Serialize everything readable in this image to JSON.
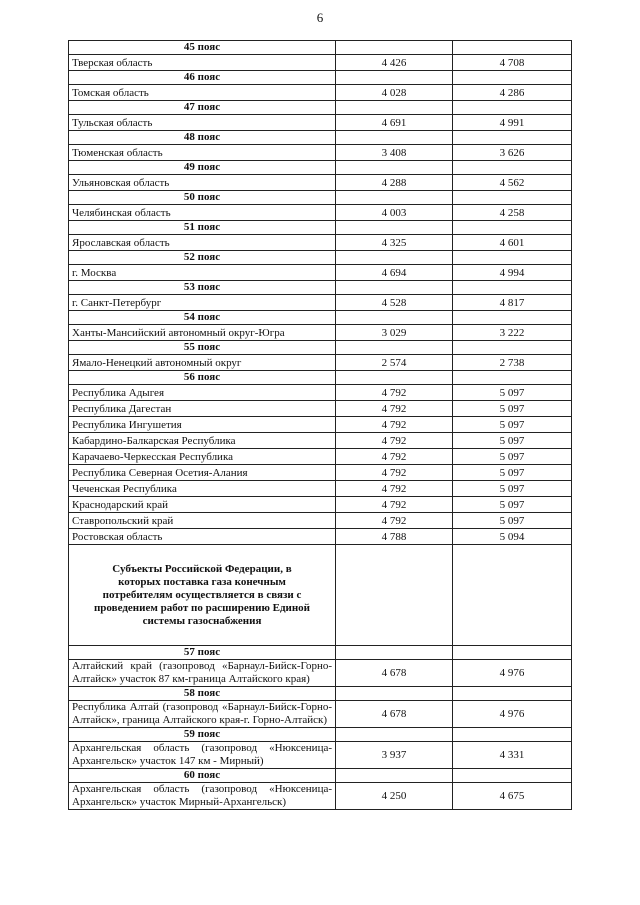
{
  "page_number": "6",
  "table": {
    "rows": [
      {
        "zone": "45 пояс"
      },
      {
        "region": "Тверская область",
        "values": [
          "4 426",
          "4 708"
        ]
      },
      {
        "zone": "46 пояс"
      },
      {
        "region": "Томская область",
        "values": [
          "4 028",
          "4 286"
        ]
      },
      {
        "zone": "47 пояс"
      },
      {
        "region": "Тульская область",
        "values": [
          "4 691",
          "4 991"
        ]
      },
      {
        "zone": "48 пояс"
      },
      {
        "region": "Тюменская область",
        "values": [
          "3 408",
          "3 626"
        ]
      },
      {
        "zone": "49 пояс"
      },
      {
        "region": "Ульяновская область",
        "values": [
          "4 288",
          "4 562"
        ]
      },
      {
        "zone": "50 пояс"
      },
      {
        "region": "Челябинская область",
        "values": [
          "4 003",
          "4 258"
        ]
      },
      {
        "zone": "51 пояс"
      },
      {
        "region": "Ярославская область",
        "values": [
          "4 325",
          "4 601"
        ]
      },
      {
        "zone": "52 пояс"
      },
      {
        "region": "г. Москва",
        "values": [
          "4 694",
          "4 994"
        ]
      },
      {
        "zone": "53 пояс"
      },
      {
        "region": "г. Санкт-Петербург",
        "values": [
          "4 528",
          "4 817"
        ]
      },
      {
        "zone": "54 пояс"
      },
      {
        "region": "Ханты-Мансийский автономный округ-Югра",
        "values": [
          "3 029",
          "3 222"
        ]
      },
      {
        "zone": "55 пояс"
      },
      {
        "region": "Ямало-Ненецкий автономный округ",
        "values": [
          "2 574",
          "2 738"
        ]
      },
      {
        "zone": "56 пояс"
      },
      {
        "region": "Республика Адыгея",
        "values": [
          "4 792",
          "5 097"
        ]
      },
      {
        "region": "Республика Дагестан",
        "values": [
          "4 792",
          "5 097"
        ]
      },
      {
        "region": "Республика Ингушетия",
        "values": [
          "4 792",
          "5 097"
        ]
      },
      {
        "region": "Кабардино-Балкарская Республика",
        "values": [
          "4 792",
          "5 097"
        ]
      },
      {
        "region": "Карачаево-Черкесская Республика",
        "values": [
          "4 792",
          "5 097"
        ]
      },
      {
        "region": "Республика Северная Осетия-Алания",
        "values": [
          "4 792",
          "5 097"
        ]
      },
      {
        "region": "Чеченская Республика",
        "values": [
          "4 792",
          "5 097"
        ]
      },
      {
        "region": "Краснодарский край",
        "values": [
          "4 792",
          "5 097"
        ]
      },
      {
        "region": "Ставропольский край",
        "values": [
          "4 792",
          "5 097"
        ]
      },
      {
        "region": "Ростовская область",
        "values": [
          "4 788",
          "5 094"
        ]
      },
      {
        "heading": "Субъекты Российской Федерации, в которых поставка газа конечным потребителям осуществляется в связи с проведением работ по расширению Единой системы газоснабжения"
      },
      {
        "zone": "57 пояс"
      },
      {
        "region": "Алтайский край (газопровод «Барнаул-Бийск-Горно-Алтайск» участок 87 км-граница Алтайского края)",
        "values": [
          "4 678",
          "4 976"
        ]
      },
      {
        "zone": "58 пояс"
      },
      {
        "region": "Республика Алтай (газопровод «Барнаул-Бийск-Горно-Алтайск», граница Алтайского края-г. Горно-Алтайск)",
        "values": [
          "4 678",
          "4 976"
        ]
      },
      {
        "zone": "59 пояс"
      },
      {
        "region": "Архангельская область (газопровод «Нюксеница-Архангельск» участок 147 км - Мирный)",
        "values": [
          "3 937",
          "4 331"
        ]
      },
      {
        "zone": "60 пояс"
      },
      {
        "region": "Архангельская область (газопровод «Нюксеница-Архангельск» участок Мирный-Архангельск)",
        "values": [
          "4 250",
          "4 675"
        ]
      }
    ]
  }
}
